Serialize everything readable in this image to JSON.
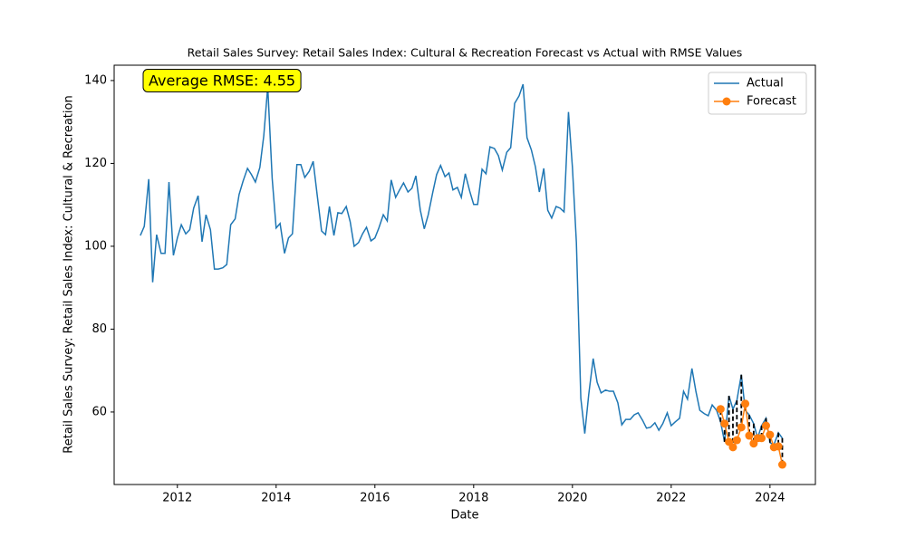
{
  "chart_data": {
    "type": "line",
    "title": "Retail Sales Survey: Retail Sales Index: Cultural & Recreation Forecast vs Actual with RMSE Values",
    "xlabel": "Date",
    "ylabel": "Retail Sales Survey: Retail Sales Index: Cultural & Recreation",
    "annotation": "Average RMSE: 4.55",
    "legend": "upper right",
    "xlim": [
      2010.72,
      2024.92
    ],
    "ylim": [
      42.5,
      143.7
    ],
    "xticks": [
      2012,
      2014,
      2016,
      2018,
      2020,
      2022,
      2024
    ],
    "yticks": [
      60,
      80,
      100,
      120,
      140
    ],
    "grid": false,
    "series": [
      {
        "name": "Actual",
        "color": "#1f77b4",
        "x": [
          2011.25,
          2011.33,
          2011.42,
          2011.5,
          2011.58,
          2011.67,
          2011.75,
          2011.83,
          2011.92,
          2012,
          2012.08,
          2012.17,
          2012.25,
          2012.33,
          2012.42,
          2012.5,
          2012.58,
          2012.67,
          2012.75,
          2012.83,
          2012.92,
          2013,
          2013.08,
          2013.17,
          2013.25,
          2013.33,
          2013.42,
          2013.5,
          2013.58,
          2013.67,
          2013.75,
          2013.83,
          2013.92,
          2014,
          2014.08,
          2014.17,
          2014.25,
          2014.33,
          2014.42,
          2014.5,
          2014.58,
          2014.67,
          2014.75,
          2014.83,
          2014.92,
          2015,
          2015.08,
          2015.17,
          2015.25,
          2015.33,
          2015.42,
          2015.5,
          2015.58,
          2015.67,
          2015.75,
          2015.83,
          2015.92,
          2016,
          2016.08,
          2016.17,
          2016.25,
          2016.33,
          2016.42,
          2016.5,
          2016.58,
          2016.67,
          2016.75,
          2016.83,
          2016.92,
          2017,
          2017.08,
          2017.17,
          2017.25,
          2017.33,
          2017.42,
          2017.5,
          2017.58,
          2017.67,
          2017.75,
          2017.83,
          2017.92,
          2018,
          2018.08,
          2018.17,
          2018.25,
          2018.33,
          2018.42,
          2018.5,
          2018.58,
          2018.67,
          2018.75,
          2018.83,
          2018.92,
          2019,
          2019.08,
          2019.17,
          2019.25,
          2019.33,
          2019.42,
          2019.5,
          2019.58,
          2019.67,
          2019.75,
          2019.83,
          2019.92,
          2020,
          2020.08,
          2020.17,
          2020.25,
          2020.33,
          2020.42,
          2020.5,
          2020.58,
          2020.67,
          2020.75,
          2020.83,
          2020.92,
          2021,
          2021.08,
          2021.17,
          2021.25,
          2021.33,
          2021.42,
          2021.5,
          2021.58,
          2021.67,
          2021.75,
          2021.83,
          2021.92,
          2022,
          2022.08,
          2022.17,
          2022.25,
          2022.33,
          2022.42,
          2022.5,
          2022.58,
          2022.67,
          2022.75,
          2022.83,
          2022.92,
          2023,
          2023.08,
          2023.17,
          2023.25,
          2023.33,
          2023.42,
          2023.5,
          2023.58,
          2023.67,
          2023.75,
          2023.83,
          2023.92,
          2024,
          2024.08,
          2024.17,
          2024.25
        ],
        "values": [
          102.6,
          104.8,
          116.2,
          91.3,
          102.8,
          98.3,
          98.3,
          115.5,
          97.8,
          102,
          105.2,
          103,
          104,
          109.2,
          112.2,
          101.1,
          107.6,
          104,
          94.5,
          94.5,
          94.8,
          95.6,
          105.2,
          106.6,
          112.5,
          115.7,
          118.8,
          117.3,
          115.5,
          119,
          126.7,
          138.5,
          116.4,
          104.4,
          105.5,
          98.3,
          102,
          103,
          119.7,
          119.7,
          116.6,
          118.1,
          120.5,
          112.5,
          103.7,
          102.8,
          109.6,
          102.6,
          108.1,
          107.9,
          109.6,
          105.9,
          100,
          100.9,
          103,
          104.6,
          101.3,
          102,
          104.4,
          107.6,
          106.1,
          116,
          111.8,
          113.6,
          115.3,
          113.1,
          114,
          117,
          108.7,
          104.2,
          107.6,
          112.9,
          117.3,
          119.5,
          116.8,
          117.7,
          113.6,
          114.2,
          111.8,
          117.5,
          113.3,
          110.1,
          110.1,
          118.6,
          117.5,
          124,
          123.6,
          121.9,
          118.4,
          122.7,
          123.8,
          134.5,
          136.3,
          139.1,
          126.2,
          123.2,
          119.2,
          113.1,
          118.8,
          108.7,
          106.8,
          109.6,
          109.2,
          108.3,
          132.4,
          119,
          100.9,
          63.3,
          54.8,
          64.2,
          72.9,
          67.2,
          64.6,
          65.3,
          65,
          65,
          62.2,
          56.9,
          58.2,
          58.2,
          59.3,
          59.8,
          58,
          56.1,
          56.3,
          57.4,
          55.6,
          57.2,
          59.8,
          56.7,
          57.6,
          58.5,
          65,
          63.1,
          70.5,
          65,
          60.4,
          59.6,
          59.1,
          61.7,
          60.4,
          57.6,
          52.8,
          63.9,
          60.7,
          62.8,
          69,
          60.4,
          59.3,
          57.2,
          53.7,
          56.7,
          58.5,
          52.6,
          52.1,
          55,
          53.7
        ]
      },
      {
        "name": "Forecast",
        "color": "#ff7f0e",
        "x": [
          2023,
          2023.08,
          2023.17,
          2023.25,
          2023.33,
          2023.42,
          2023.5,
          2023.58,
          2023.67,
          2023.75,
          2023.83,
          2023.92,
          2024,
          2024.08,
          2024.17,
          2024.25
        ],
        "values": [
          60.7,
          57.2,
          52.8,
          51.5,
          53.2,
          56.3,
          62,
          54.3,
          52.4,
          53.7,
          53.7,
          56.7,
          54.5,
          51.5,
          51.7,
          47.3
        ]
      }
    ]
  }
}
